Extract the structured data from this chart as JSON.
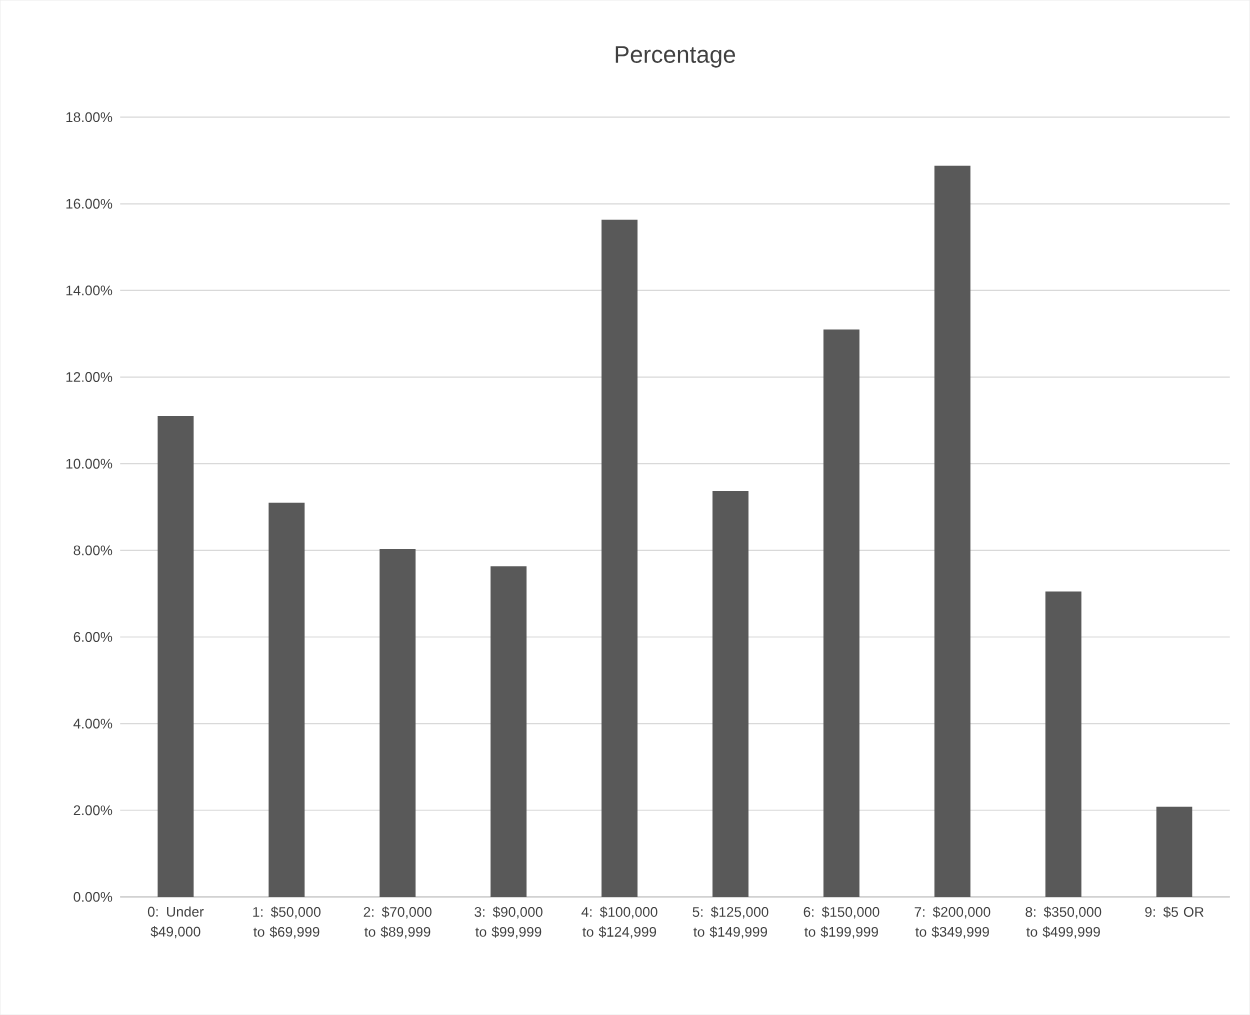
{
  "chart_data": {
    "type": "bar",
    "title": "Percentage",
    "categories": [
      "0: Under $49,000",
      "1: $50,000 to $69,999",
      "2: $70,000 to $89,999",
      "3: $90,000 to $99,999",
      "4: $100,000 to $124,999",
      "5: $125,000 to $149,999",
      "6: $150,000 to $199,999",
      "7: $200,000 to $349,999",
      "8: $350,000 to $499,999",
      "9: $5 OR"
    ],
    "values": [
      11.1,
      9.1,
      8.03,
      7.63,
      15.63,
      9.37,
      13.1,
      16.88,
      7.05,
      2.08
    ],
    "color": "#595959",
    "ylim": [
      0,
      18
    ],
    "yticks": [
      {
        "value": 0,
        "label": "0.00%"
      },
      {
        "value": 2,
        "label": "2.00%"
      },
      {
        "value": 4,
        "label": "4.00%"
      },
      {
        "value": 6,
        "label": "6.00%"
      },
      {
        "value": 8,
        "label": "8.00%"
      },
      {
        "value": 10,
        "label": "10.00%"
      },
      {
        "value": 12,
        "label": "12.00%"
      },
      {
        "value": 14,
        "label": "14.00%"
      },
      {
        "value": 16,
        "label": "16.00%"
      },
      {
        "value": 18,
        "label": "18.00%"
      }
    ],
    "grid": "y"
  }
}
